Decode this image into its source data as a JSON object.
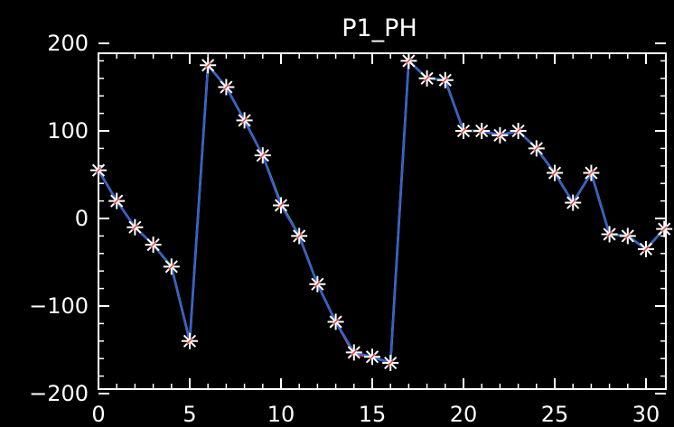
{
  "chart_data": {
    "type": "line",
    "title": "P1_PH",
    "xlabel": "",
    "ylabel": "",
    "xlim": [
      0,
      31
    ],
    "ylim": [
      -210,
      210
    ],
    "x_ticks": [
      0,
      5,
      10,
      15,
      20,
      25,
      30
    ],
    "y_ticks": [
      -200,
      -100,
      0,
      100,
      200
    ],
    "x_tick_labels": [
      "0",
      "5",
      "10",
      "15",
      "20",
      "25",
      "30"
    ],
    "y_tick_labels": [
      "−200",
      "−100",
      "0",
      "100",
      "200"
    ],
    "grid": false,
    "background": "#000000",
    "axis_color": "#ffffff",
    "marker": "asterisk",
    "x": [
      0,
      1,
      2,
      3,
      4,
      5,
      6,
      7,
      8,
      9,
      10,
      11,
      12,
      13,
      14,
      15,
      16,
      17,
      18,
      19,
      20,
      21,
      22,
      23,
      24,
      25,
      26,
      27,
      28,
      29,
      30,
      31
    ],
    "series": [
      {
        "color": "#ff3333",
        "values": [
          55,
          20,
          -10,
          -30,
          -55,
          -140,
          175,
          150,
          112,
          72,
          15,
          -20,
          -75,
          -118,
          -155,
          -158,
          -165,
          180,
          160,
          158,
          100,
          100,
          95,
          100,
          80,
          52,
          18,
          52,
          -18,
          -20,
          -35,
          -12
        ]
      },
      {
        "color": "#33cc33",
        "values": [
          55,
          20,
          -10,
          -30,
          -55,
          -140,
          175,
          150,
          112,
          72,
          17,
          -20,
          -75,
          -118,
          -153,
          -158,
          -165,
          180,
          160,
          158,
          100,
          100,
          95,
          100,
          80,
          52,
          18,
          52,
          -18,
          -20,
          -35,
          -12
        ]
      },
      {
        "color": "#3355ff",
        "values": [
          55,
          20,
          -10,
          -30,
          -55,
          -140,
          175,
          150,
          112,
          72,
          15,
          -20,
          -75,
          -118,
          -153,
          -158,
          -165,
          180,
          160,
          158,
          100,
          100,
          95,
          100,
          80,
          52,
          18,
          52,
          -18,
          -20,
          -35,
          -12
        ]
      }
    ]
  }
}
